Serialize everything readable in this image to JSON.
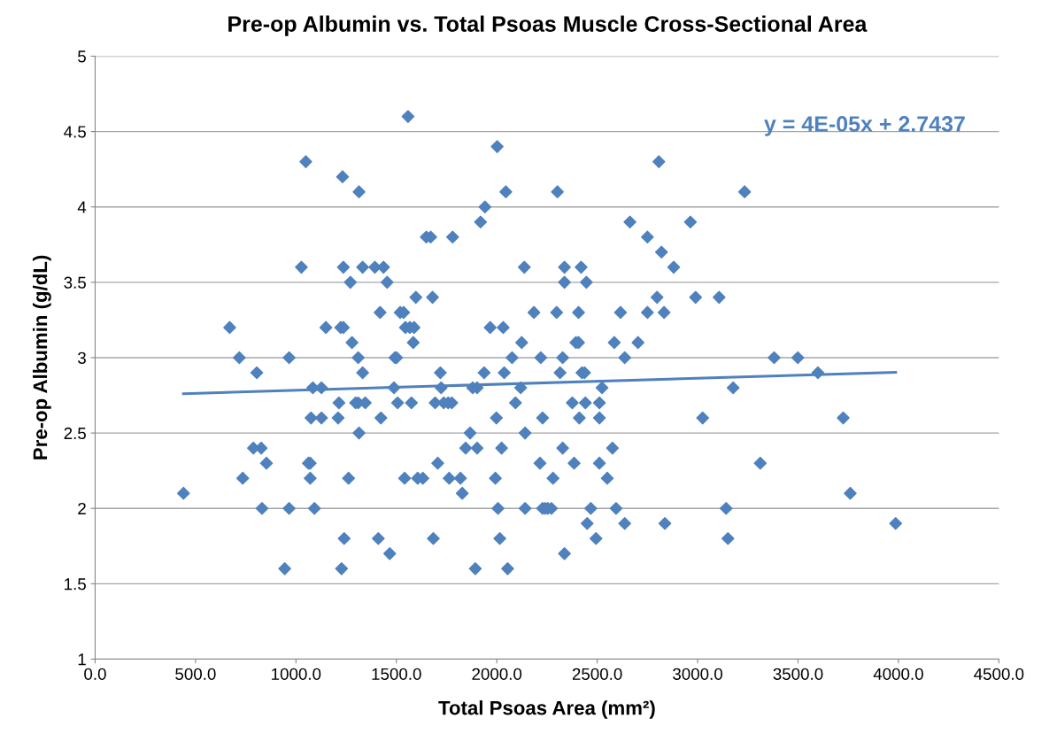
{
  "chart_data": {
    "type": "scatter",
    "title": "Pre-op Albumin vs. Total Psoas Muscle Cross-Sectional Area",
    "xlabel": "Total Psoas Area (mm²)",
    "ylabel": "Pre-op Albumin (g/dL)",
    "xlim": [
      0,
      4500
    ],
    "ylim": [
      1,
      5
    ],
    "xticks": [
      {
        "value": 0,
        "label": "0.0"
      },
      {
        "value": 500,
        "label": "500.0"
      },
      {
        "value": 1000,
        "label": "1000.0"
      },
      {
        "value": 1500,
        "label": "1500.0"
      },
      {
        "value": 2000,
        "label": "2000.0"
      },
      {
        "value": 2500,
        "label": "2500.0"
      },
      {
        "value": 3000,
        "label": "3000.0"
      },
      {
        "value": 3500,
        "label": "3500.0"
      },
      {
        "value": 4000,
        "label": "4000.0"
      },
      {
        "value": 4500,
        "label": "4500.0"
      }
    ],
    "yticks": [
      1,
      1.5,
      2,
      2.5,
      3,
      3.5,
      4,
      4.5,
      5
    ],
    "grid": "y",
    "annotations": [
      "y = 4E-05x + 2.7437"
    ],
    "series": [
      {
        "color": "#4f81bd",
        "marker": "diamond",
        "x": [
          440,
          670,
          718,
          735,
          788,
          805,
          827,
          831,
          853,
          944,
          966,
          966,
          1027,
          1049,
          1062,
          1071,
          1071,
          1075,
          1084,
          1092,
          1127,
          1127,
          1149,
          1210,
          1214,
          1223,
          1227,
          1232,
          1236,
          1236,
          1240,
          1262,
          1271,
          1279,
          1297,
          1310,
          1310,
          1314,
          1314,
          1332,
          1332,
          1345,
          1393,
          1410,
          1419,
          1423,
          1436,
          1454,
          1467,
          1488,
          1493,
          1501,
          1506,
          1519,
          1536,
          1541,
          1545,
          1558,
          1567,
          1575,
          1584,
          1588,
          1597,
          1606,
          1632,
          1649,
          1671,
          1680,
          1684,
          1693,
          1706,
          1719,
          1723,
          1736,
          1758,
          1763,
          1776,
          1780,
          1819,
          1828,
          1845,
          1867,
          1880,
          1893,
          1902,
          1902,
          1919,
          1937,
          1941,
          1967,
          1993,
          1998,
          2002,
          2006,
          2015,
          2024,
          2032,
          2037,
          2045,
          2054,
          2076,
          2093,
          2119,
          2124,
          2137,
          2141,
          2141,
          2185,
          2215,
          2219,
          2228,
          2228,
          2241,
          2254,
          2272,
          2280,
          2298,
          2302,
          2315,
          2328,
          2328,
          2337,
          2337,
          2337,
          2376,
          2385,
          2394,
          2407,
          2407,
          2411,
          2420,
          2424,
          2437,
          2441,
          2446,
          2450,
          2468,
          2494,
          2511,
          2511,
          2511,
          2524,
          2550,
          2576,
          2585,
          2594,
          2616,
          2637,
          2637,
          2663,
          2703,
          2750,
          2750,
          2798,
          2807,
          2820,
          2833,
          2837,
          2881,
          2964,
          2990,
          3025,
          3107,
          3142,
          3151,
          3177,
          3234,
          3312,
          3381,
          3499,
          3599,
          3725,
          3760,
          3986
        ],
        "values": [
          2.1,
          3.2,
          3.0,
          2.2,
          2.4,
          2.9,
          2.4,
          2.0,
          2.3,
          1.6,
          3.0,
          2.0,
          3.6,
          4.3,
          2.3,
          2.3,
          2.2,
          2.6,
          2.8,
          2.0,
          2.8,
          2.6,
          3.2,
          2.6,
          2.7,
          3.2,
          1.6,
          4.2,
          3.2,
          3.6,
          1.8,
          2.2,
          3.5,
          3.1,
          2.7,
          3.0,
          2.7,
          2.5,
          4.1,
          2.9,
          3.6,
          2.7,
          3.6,
          1.8,
          3.3,
          2.6,
          3.6,
          3.5,
          1.7,
          2.8,
          3.0,
          3.0,
          2.7,
          3.3,
          3.3,
          2.2,
          3.2,
          4.6,
          3.2,
          2.7,
          3.1,
          3.2,
          3.4,
          2.2,
          2.2,
          3.8,
          3.8,
          3.4,
          1.8,
          2.7,
          2.3,
          2.9,
          2.8,
          2.7,
          2.7,
          2.2,
          2.7,
          3.8,
          2.2,
          2.1,
          2.4,
          2.5,
          2.8,
          1.6,
          2.4,
          2.8,
          3.9,
          2.9,
          4.0,
          3.2,
          2.2,
          2.6,
          4.4,
          2.0,
          1.8,
          2.4,
          3.2,
          2.9,
          4.1,
          1.6,
          3.0,
          2.7,
          2.8,
          3.1,
          3.6,
          2.5,
          2.0,
          3.3,
          2.3,
          3.0,
          2.6,
          2.0,
          2.0,
          2.0,
          2.0,
          2.2,
          3.3,
          4.1,
          2.9,
          3.0,
          2.4,
          3.5,
          3.6,
          1.7,
          2.7,
          2.3,
          3.1,
          3.1,
          3.3,
          2.6,
          3.6,
          2.9,
          2.9,
          2.7,
          3.5,
          1.9,
          2.0,
          1.8,
          2.7,
          2.6,
          2.3,
          2.8,
          2.2,
          2.4,
          3.1,
          2.0,
          3.3,
          3.0,
          1.9,
          3.9,
          3.1,
          3.8,
          3.3,
          3.4,
          4.3,
          3.7,
          3.3,
          1.9,
          3.6,
          3.9,
          3.4,
          2.6,
          3.4,
          2.0,
          1.8,
          2.8,
          4.1,
          2.3,
          3.0,
          3.0,
          2.9,
          2.6,
          2.1,
          1.9
        ]
      },
      {
        "type": "line",
        "color": "#4f81bd",
        "x": [
          440,
          3986
        ],
        "values": [
          2.761,
          2.903
        ]
      }
    ]
  }
}
